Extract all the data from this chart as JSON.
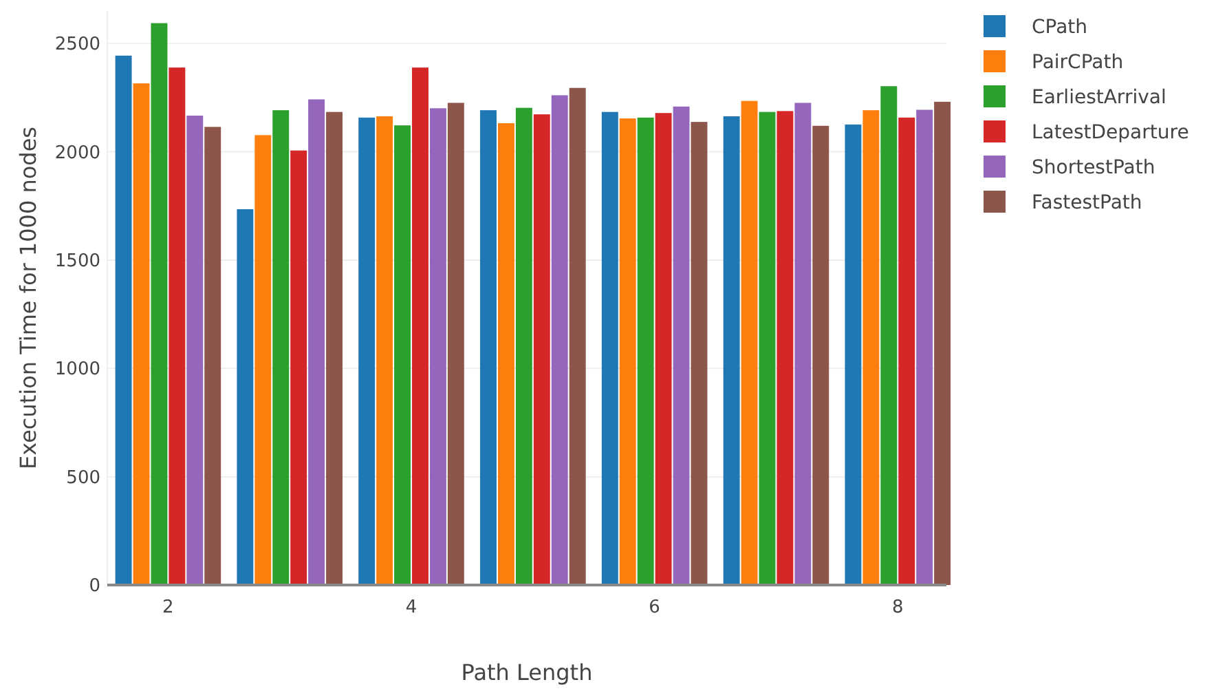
{
  "chart_data": {
    "type": "bar",
    "xlabel": "Path Length",
    "ylabel": "Execution Time for 1000 nodes",
    "x": [
      2,
      3,
      4,
      5,
      6,
      7,
      8
    ],
    "xlim": [
      1.5,
      8.4
    ],
    "xticks": [
      2,
      4,
      6,
      8
    ],
    "ylim": [
      0,
      2650
    ],
    "yticks": [
      0,
      500,
      1000,
      1500,
      2000,
      2500
    ],
    "grid": "y",
    "legend": "top right",
    "series": [
      {
        "name": "CPath",
        "color": "#1f77b4",
        "values": [
          2444,
          1735,
          2158,
          2192,
          2184,
          2164,
          2126
        ]
      },
      {
        "name": "PairCPath",
        "color": "#ff7f0e",
        "values": [
          2316,
          2077,
          2164,
          2132,
          2154,
          2235,
          2192
        ]
      },
      {
        "name": "EarliestArrival",
        "color": "#2ca02c",
        "values": [
          2594,
          2192,
          2122,
          2203,
          2158,
          2184,
          2303
        ]
      },
      {
        "name": "LatestDeparture",
        "color": "#d62728",
        "values": [
          2389,
          2006,
          2389,
          2173,
          2179,
          2188,
          2158
        ]
      },
      {
        "name": "ShortestPath",
        "color": "#9467bd",
        "values": [
          2167,
          2242,
          2201,
          2261,
          2209,
          2226,
          2194
        ]
      },
      {
        "name": "FastestPath",
        "color": "#8c564b",
        "values": [
          2115,
          2184,
          2226,
          2295,
          2138,
          2120,
          2231
        ]
      }
    ]
  }
}
